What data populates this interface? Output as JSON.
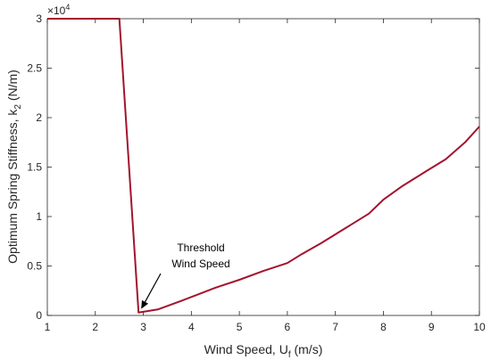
{
  "chart_data": {
    "type": "line",
    "xlabel_main": "Wind Speed, U",
    "xlabel_sub": "f",
    "xlabel_tail": " (m/s)",
    "ylabel_main": "Optimum Spring Stiffness, k",
    "ylabel_sub": "2",
    "ylabel_tail": " (N/m)",
    "y_exponent_base": "×10",
    "y_exponent_power": "4",
    "xlim": [
      1,
      10
    ],
    "ylim": [
      0,
      3
    ],
    "xticks": [
      "1",
      "2",
      "3",
      "4",
      "5",
      "6",
      "7",
      "8",
      "9",
      "10"
    ],
    "yticks": [
      "0",
      "0.5",
      "1",
      "1.5",
      "2",
      "2.5",
      "3"
    ],
    "grid": false,
    "line_color": "#A2142F",
    "series": [
      {
        "x": [
          1.0,
          2.5,
          2.9,
          3.3,
          3.8,
          4.5,
          5.0,
          5.5,
          6.0,
          6.3,
          6.7,
          7.0,
          7.4,
          7.7,
          8.0,
          8.4,
          8.9,
          9.3,
          9.7,
          10.0
        ],
        "y": [
          3.0,
          3.0,
          0.03,
          0.06,
          0.15,
          0.28,
          0.36,
          0.45,
          0.53,
          0.62,
          0.73,
          0.82,
          0.94,
          1.03,
          1.17,
          1.31,
          1.46,
          1.58,
          1.75,
          1.91
        ]
      }
    ],
    "annotation": {
      "line1": "Threshold",
      "line2": "Wind Speed",
      "target_x": 2.9,
      "target_y": 0.03
    }
  }
}
